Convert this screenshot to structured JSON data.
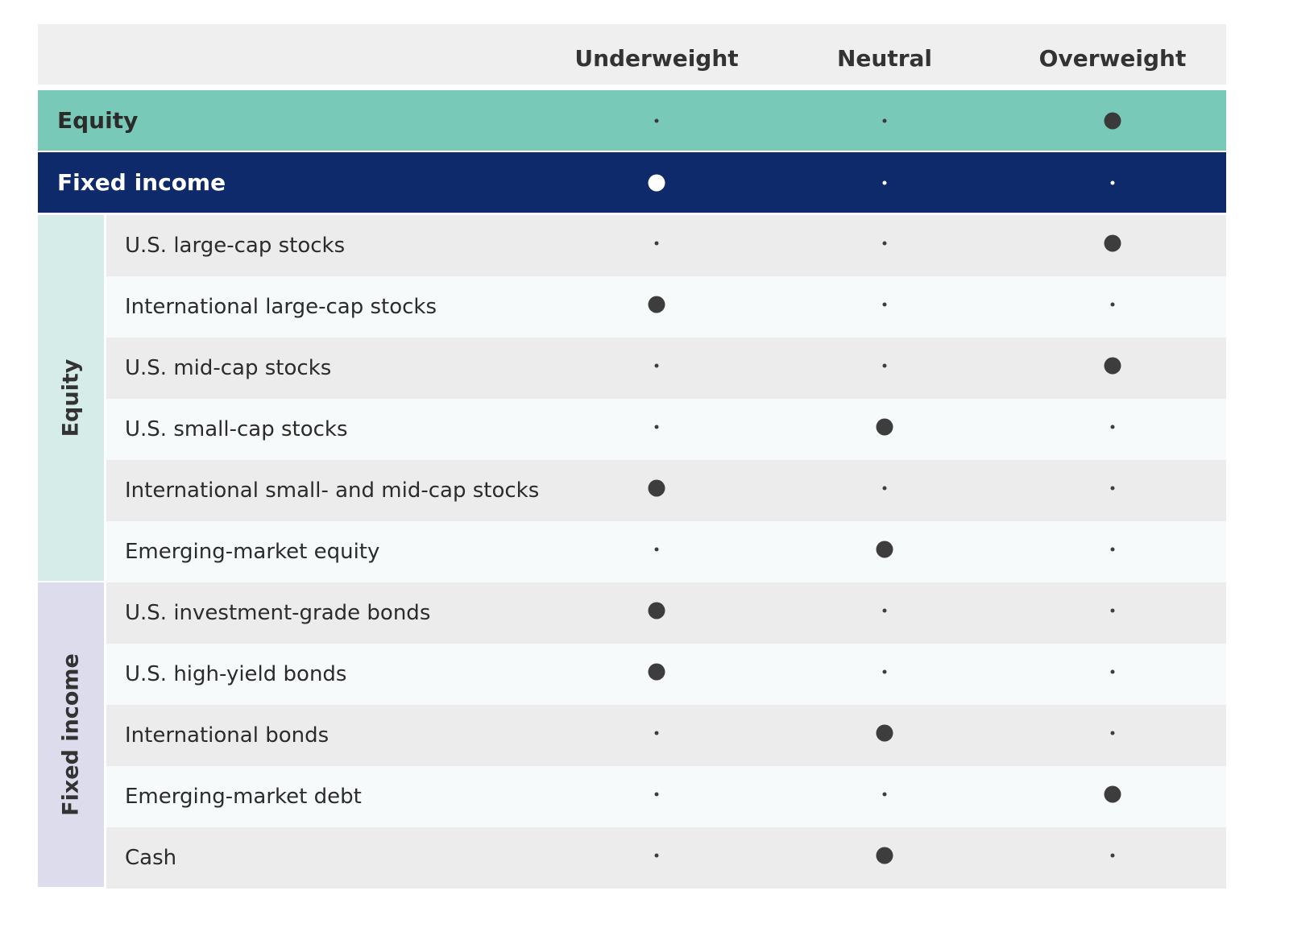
{
  "header": {
    "columns": [
      "Underweight",
      "Neutral",
      "Overweight"
    ]
  },
  "summary_rows": [
    {
      "label": "Equity",
      "position": 2
    },
    {
      "label": "Fixed income",
      "position": 0
    }
  ],
  "groups": [
    {
      "label": "Equity",
      "rows": [
        {
          "label": "U.S. large-cap stocks",
          "position": 2
        },
        {
          "label": "International large-cap stocks",
          "position": 0
        },
        {
          "label": "U.S. mid-cap stocks",
          "position": 2
        },
        {
          "label": "U.S. small-cap stocks",
          "position": 1
        },
        {
          "label": "International small- and mid-cap stocks",
          "position": 0
        },
        {
          "label": "Emerging-market equity",
          "position": 1
        }
      ]
    },
    {
      "label": "Fixed income",
      "rows": [
        {
          "label": "U.S. investment-grade bonds",
          "position": 0
        },
        {
          "label": "U.S. high-yield bonds",
          "position": 0
        },
        {
          "label": "International bonds",
          "position": 1
        },
        {
          "label": "Emerging-market debt",
          "position": 2
        },
        {
          "label": "Cash",
          "position": 1
        }
      ]
    }
  ]
}
